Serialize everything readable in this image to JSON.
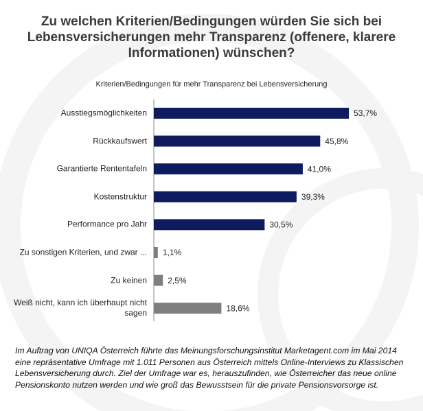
{
  "chart_data": {
    "type": "bar",
    "orientation": "horizontal",
    "title": "Zu welchen Kriterien/Bedingungen  würden Sie sich bei Lebensversicherungen mehr Transparenz (offenere, klarere Informationen) wünschen?",
    "subtitle": "Kriterien/Bedingungen  für mehr Transparenz  bei Lebensversicherung",
    "categories": [
      "Ausstiegsmöglichkeiten",
      "Rückkaufswert",
      "Garantierte Rententafeln",
      "Kostenstruktur",
      "Performance pro Jahr",
      "Zu sonstigen Kriterien, und zwar ...",
      "Zu keinen",
      "Weiß nicht, kann ich überhaupt nicht sagen"
    ],
    "values": [
      53.7,
      45.8,
      41.0,
      39.3,
      30.5,
      1.1,
      2.5,
      18.6
    ],
    "value_labels": [
      "53,7%",
      "45,8%",
      "41,0%",
      "39,3%",
      "30,5%",
      "1,1%",
      "2,5%",
      "18,6%"
    ],
    "colors": [
      "#0e1b5e",
      "#0e1b5e",
      "#0e1b5e",
      "#0e1b5e",
      "#0e1b5e",
      "#7f7f7f",
      "#7f7f7f",
      "#7f7f7f"
    ],
    "footnote": "Im Auftrag von UNIQA Österreich führte das Meinungsforschungsinstitut Marketagent.com im Mai 2014 eine repräsentative Umfrage mit 1.011 Personen aus Österreich mittels Online-Interviews zu Klassischen Lebensversicherung durch. Ziel der Umfrage war es, herauszufinden, wie Österreicher das neue online Pensionskonto nutzen werden und wie groß das Bewusstsein für die private Pensionsvorsorge ist."
  }
}
